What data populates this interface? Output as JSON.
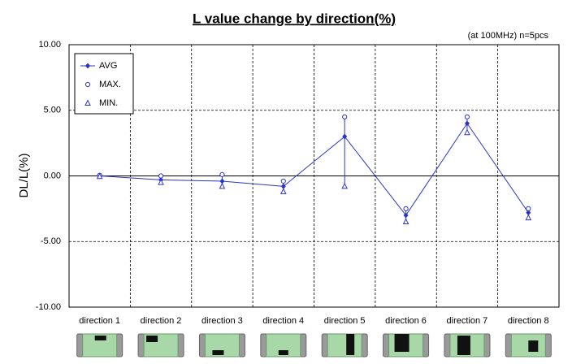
{
  "chart_data": {
    "type": "line",
    "title": "L value change by direction(%)",
    "annotation": "(at 100MHz)  n=5pcs",
    "y_label": "DL/L(%)",
    "categories": [
      "direction 1",
      "direction 2",
      "direction 3",
      "direction 4",
      "direction 5",
      "direction 6",
      "direction 7",
      "direction 8"
    ],
    "series": [
      {
        "name": "AVG",
        "color": "#2a35c8",
        "marker": "diamond",
        "line": true,
        "values": [
          0,
          -0.3,
          -0.4,
          -0.8,
          3.0,
          -3.0,
          4.0,
          -2.8
        ]
      },
      {
        "name": "MAX.",
        "color": "#2a35c8",
        "marker": "circle",
        "line": false,
        "values": [
          0.05,
          0,
          0.1,
          -0.4,
          4.5,
          -2.5,
          4.5,
          -2.5
        ]
      },
      {
        "name": "MIN.",
        "color": "#2a35c8",
        "marker": "triangle",
        "line": false,
        "values": [
          -0.05,
          -0.5,
          -0.8,
          -1.2,
          -0.8,
          -3.5,
          3.3,
          -3.2
        ]
      }
    ],
    "ylim": [
      -10,
      10
    ],
    "yticks": [
      {
        "value": -10,
        "label": "-10.00"
      },
      {
        "value": -5,
        "label": "-5.00"
      },
      {
        "value": 0,
        "label": "0.00"
      },
      {
        "value": 5,
        "label": "5.00"
      },
      {
        "value": 10,
        "label": "10.00"
      }
    ],
    "grid": true,
    "legend": "upper-left"
  }
}
